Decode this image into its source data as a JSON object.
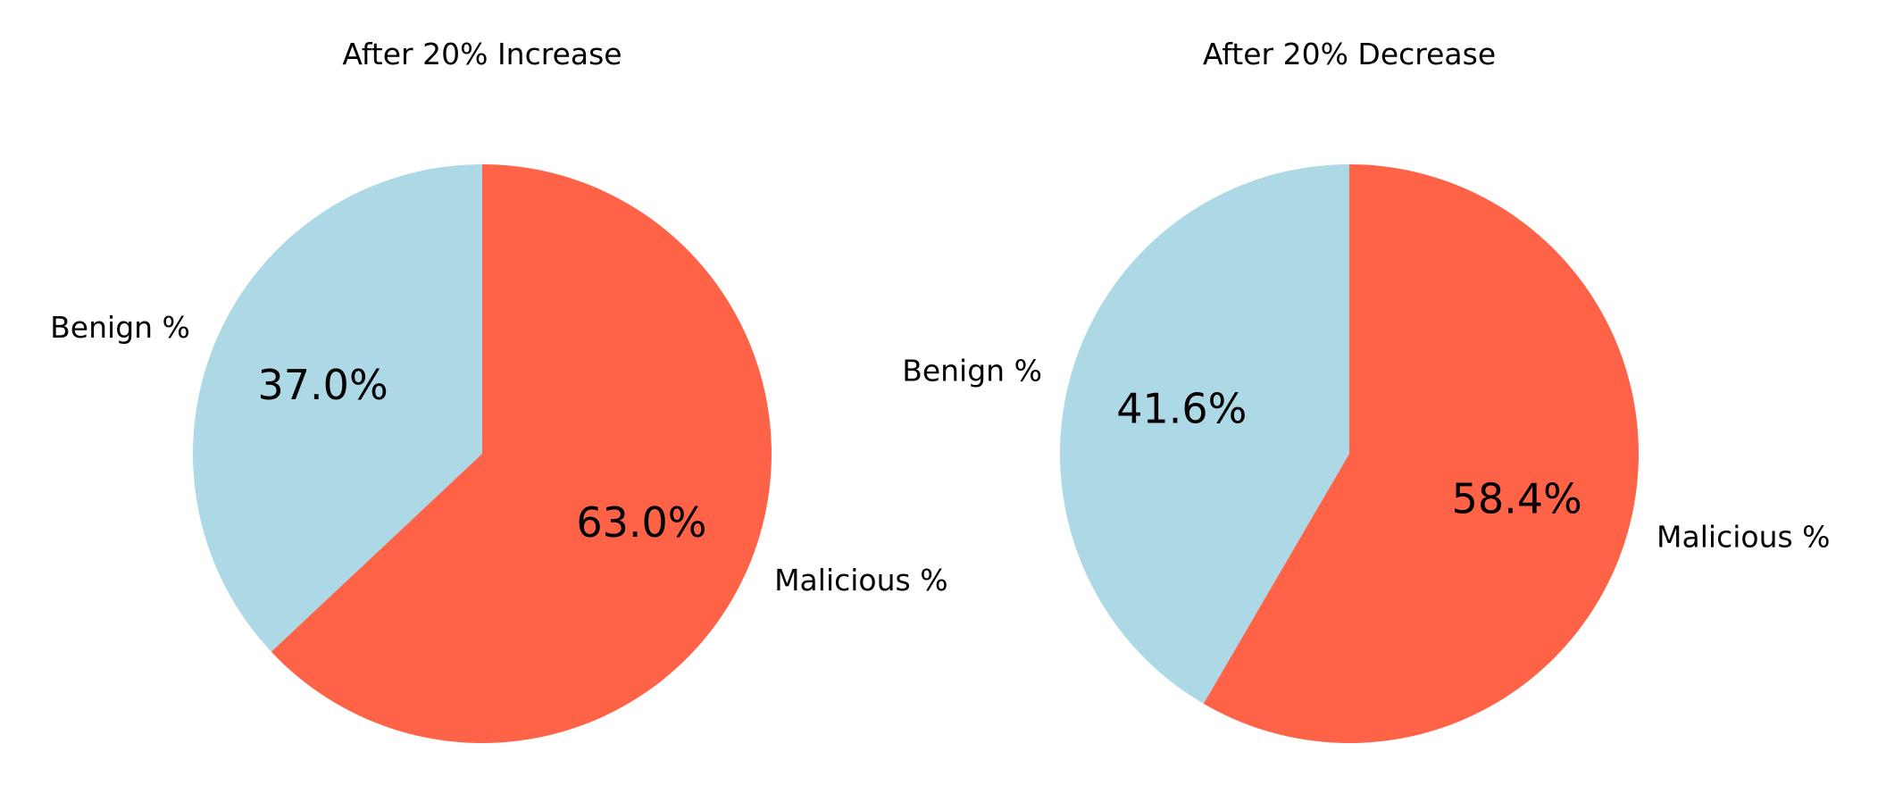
{
  "chart_data": [
    {
      "type": "pie",
      "title": "After 20% Increase",
      "labels": [
        "Benign %",
        "Malicious %"
      ],
      "values": [
        37.0,
        63.0
      ],
      "value_labels": [
        "37.0%",
        "63.0%"
      ],
      "colors": [
        "#add8e6",
        "#ff6347"
      ],
      "start_angle_deg": 90,
      "direction": "counterclockwise",
      "legend": "none"
    },
    {
      "type": "pie",
      "title": "After 20% Decrease",
      "labels": [
        "Benign %",
        "Malicious %"
      ],
      "values": [
        41.6,
        58.4
      ],
      "value_labels": [
        "41.6%",
        "58.4%"
      ],
      "colors": [
        "#add8e6",
        "#ff6347"
      ],
      "start_angle_deg": 90,
      "direction": "counterclockwise",
      "legend": "none"
    }
  ]
}
